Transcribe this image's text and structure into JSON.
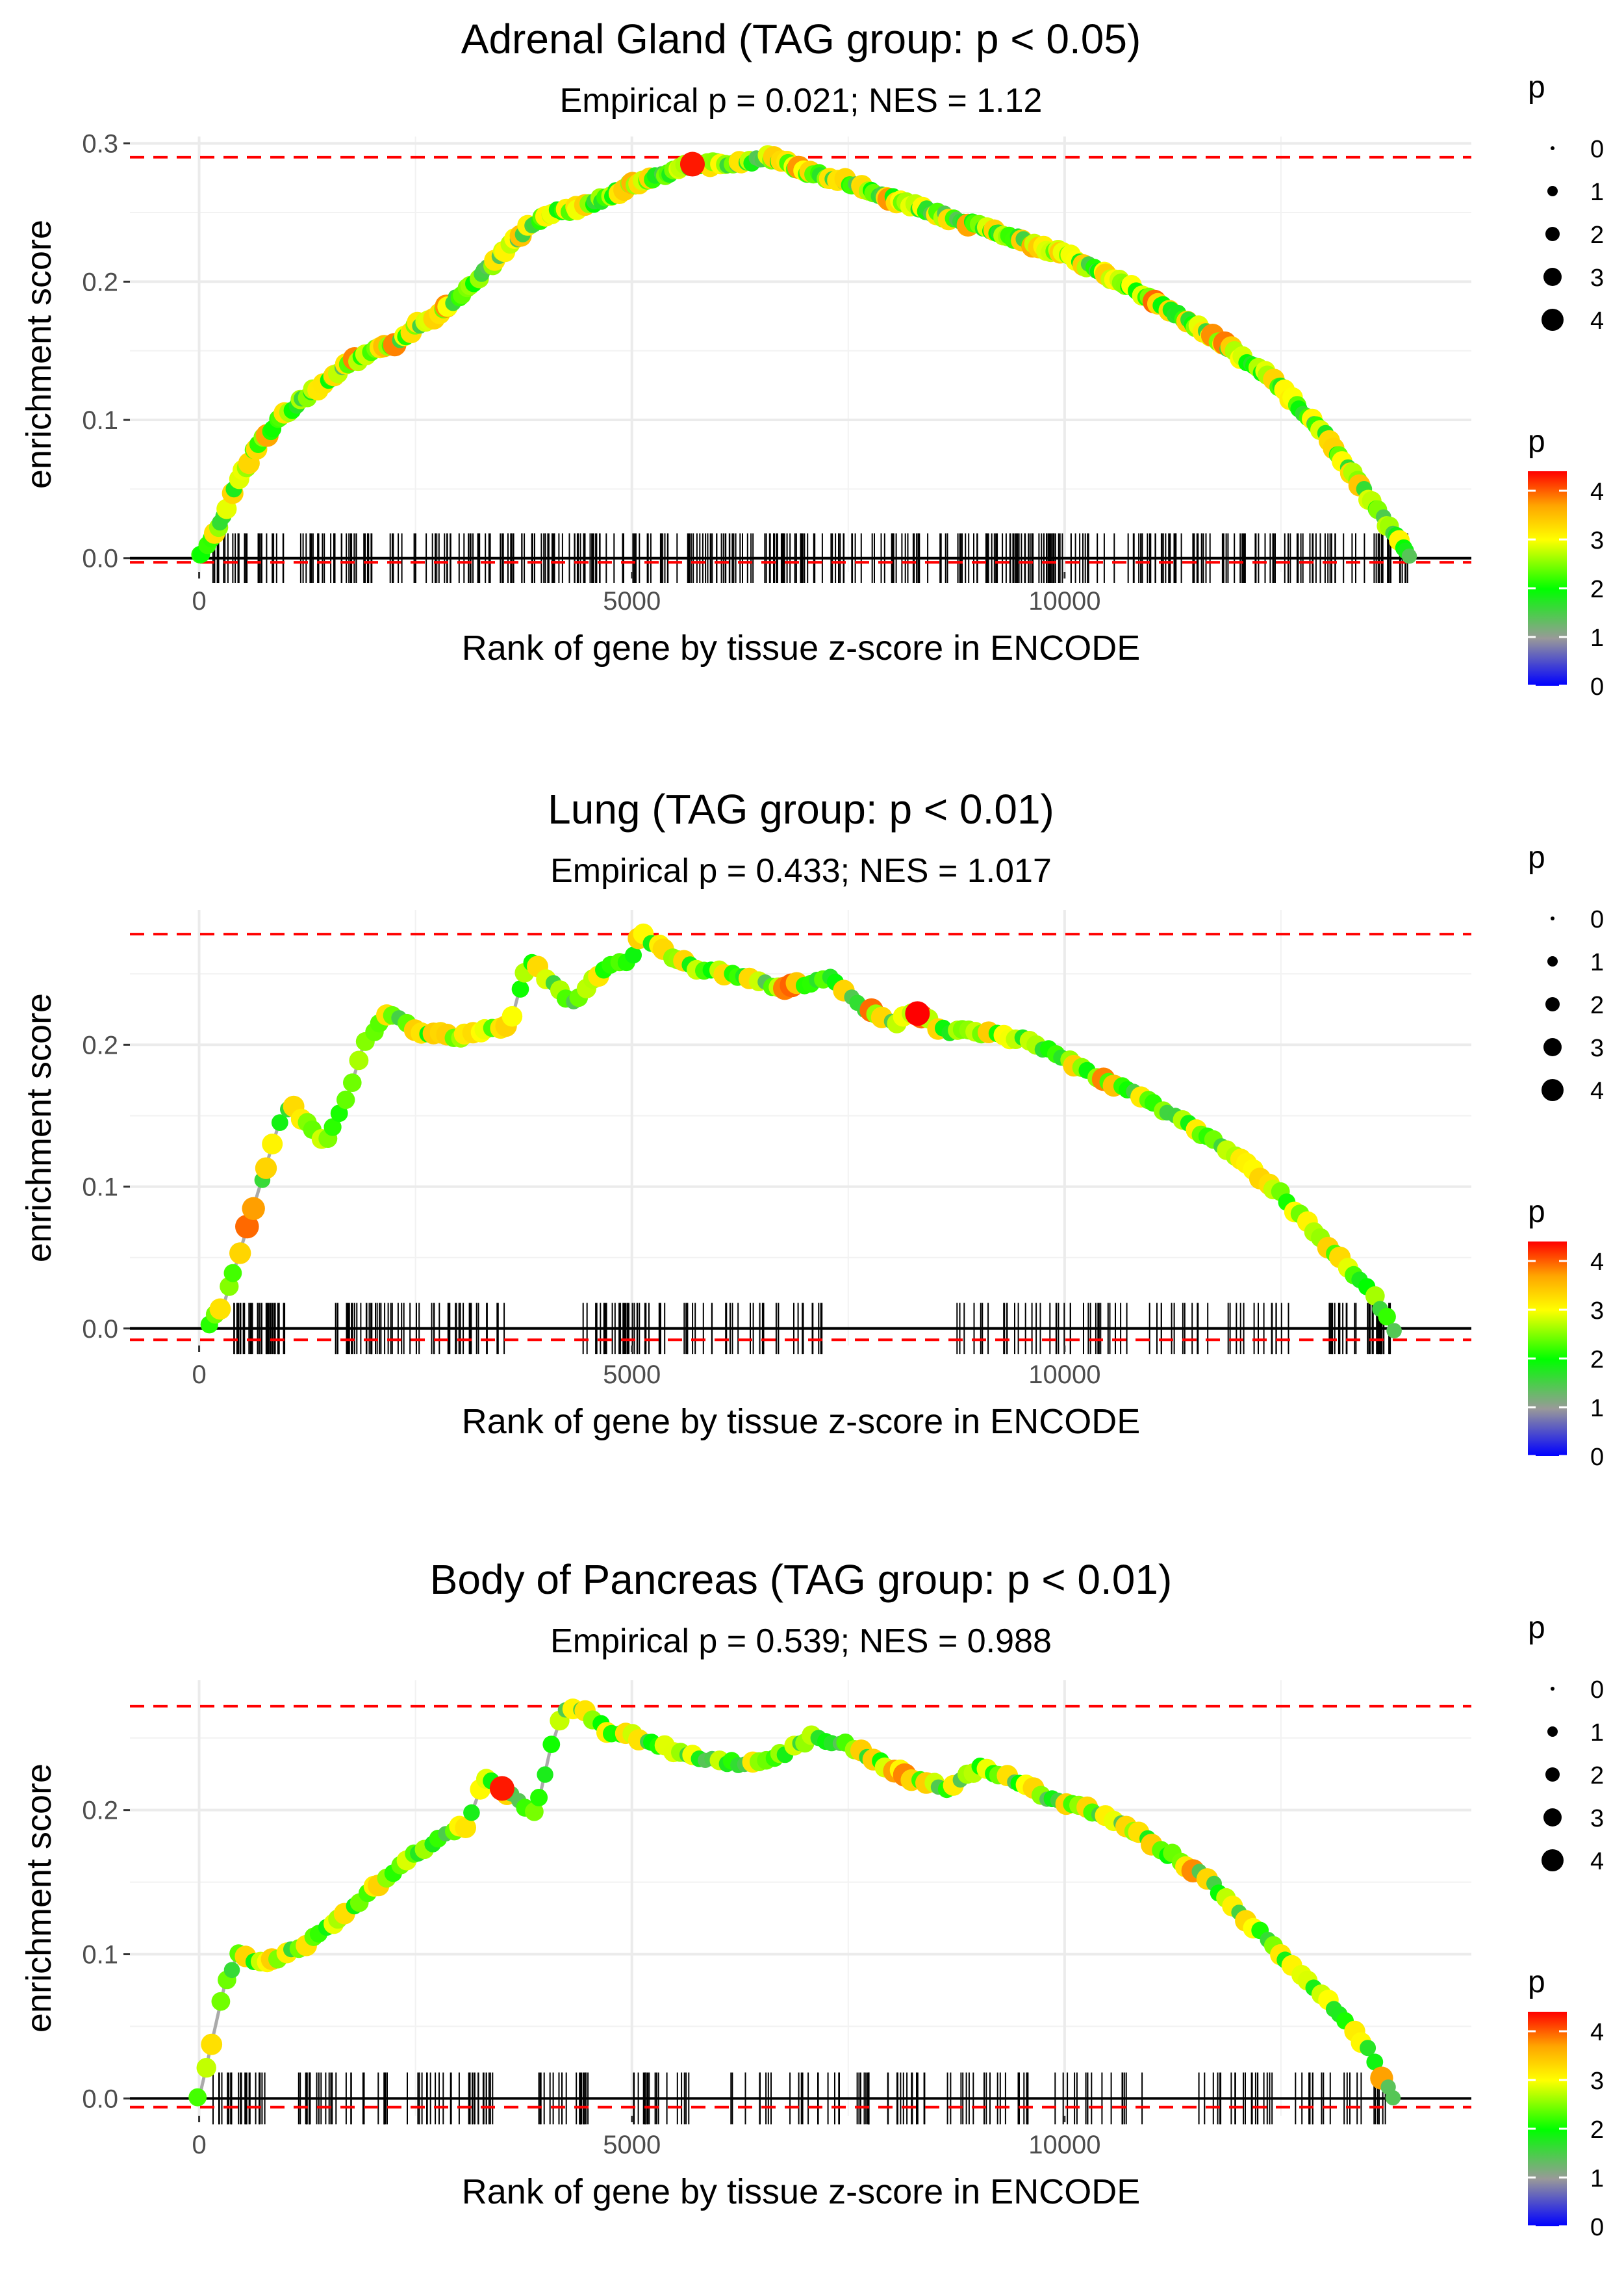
{
  "chart_data": [
    {
      "type": "line",
      "title": "Adrenal Gland (TAG group: p < 0.05)",
      "subtitle": "Empirical p = 0.021; NES = 1.12",
      "xlabel": "Rank of gene by tissue z-score in ENCODE",
      "ylabel": "enrichment score",
      "xlim": [
        -800,
        14700
      ],
      "ylim": [
        -0.01,
        0.305
      ],
      "x_ticks": [
        0,
        5000,
        10000
      ],
      "x_tick_labels": [
        "0",
        "5000",
        "10000"
      ],
      "y_ticks": [
        0.0,
        0.1,
        0.2,
        0.3
      ],
      "y_tick_labels": [
        "0.0",
        "0.1",
        "0.2",
        "0.3"
      ],
      "max_es": 0.29,
      "min_es": -0.003,
      "n_hits": 420,
      "curve": [
        [
          0,
          0
        ],
        [
          200,
          0.02
        ],
        [
          400,
          0.05
        ],
        [
          700,
          0.085
        ],
        [
          1000,
          0.105
        ],
        [
          1300,
          0.12
        ],
        [
          1600,
          0.135
        ],
        [
          2000,
          0.15
        ],
        [
          2300,
          0.155
        ],
        [
          2500,
          0.168
        ],
        [
          2800,
          0.178
        ],
        [
          3100,
          0.195
        ],
        [
          3500,
          0.22
        ],
        [
          3800,
          0.24
        ],
        [
          4100,
          0.25
        ],
        [
          4500,
          0.255
        ],
        [
          5000,
          0.27
        ],
        [
          5700,
          0.285
        ],
        [
          6200,
          0.285
        ],
        [
          6600,
          0.29
        ],
        [
          7000,
          0.28
        ],
        [
          7500,
          0.272
        ],
        [
          8000,
          0.26
        ],
        [
          9000,
          0.24
        ],
        [
          10000,
          0.22
        ],
        [
          10800,
          0.195
        ],
        [
          11600,
          0.165
        ],
        [
          12400,
          0.13
        ],
        [
          13000,
          0.09
        ],
        [
          13500,
          0.045
        ],
        [
          14000,
          0
        ]
      ],
      "highlight": {
        "x": 5700,
        "y": 0.285,
        "p": 4.3
      },
      "size_legend": {
        "title": "p",
        "values": [
          "0",
          "1",
          "2",
          "3",
          "4"
        ]
      },
      "color_legend": {
        "title": "p",
        "ticks": [
          "0",
          "1",
          "2",
          "3",
          "4"
        ],
        "max": 4.4
      }
    },
    {
      "type": "line",
      "title": "Lung (TAG group: p < 0.01)",
      "subtitle": "Empirical p = 0.433; NES = 1.017",
      "xlabel": "Rank of gene by tissue z-score in ENCODE",
      "ylabel": "enrichment score",
      "xlim": [
        -800,
        14700
      ],
      "ylim": [
        -0.012,
        0.295
      ],
      "x_ticks": [
        0,
        5000,
        10000
      ],
      "x_tick_labels": [
        "0",
        "5000",
        "10000"
      ],
      "y_ticks": [
        0.0,
        0.1,
        0.2
      ],
      "y_tick_labels": [
        "0.0",
        "0.1",
        "0.2"
      ],
      "max_es": 0.278,
      "min_es": -0.008,
      "n_hits": 260,
      "curve": [
        [
          100,
          0
        ],
        [
          300,
          0.02
        ],
        [
          500,
          0.06
        ],
        [
          700,
          0.1
        ],
        [
          900,
          0.14
        ],
        [
          1050,
          0.158
        ],
        [
          1450,
          0.13
        ],
        [
          1700,
          0.16
        ],
        [
          1900,
          0.2
        ],
        [
          2200,
          0.222
        ],
        [
          2500,
          0.21
        ],
        [
          3000,
          0.205
        ],
        [
          3300,
          0.21
        ],
        [
          3600,
          0.215
        ],
        [
          3800,
          0.262
        ],
        [
          4300,
          0.228
        ],
        [
          4700,
          0.255
        ],
        [
          5000,
          0.26
        ],
        [
          5100,
          0.278
        ],
        [
          5400,
          0.265
        ],
        [
          5700,
          0.255
        ],
        [
          6200,
          0.248
        ],
        [
          6800,
          0.24
        ],
        [
          7300,
          0.248
        ],
        [
          7700,
          0.225
        ],
        [
          8000,
          0.215
        ],
        [
          8300,
          0.222
        ],
        [
          8600,
          0.21
        ],
        [
          9000,
          0.208
        ],
        [
          9500,
          0.205
        ],
        [
          10000,
          0.19
        ],
        [
          10500,
          0.175
        ],
        [
          11000,
          0.16
        ],
        [
          11500,
          0.14
        ],
        [
          12000,
          0.12
        ],
        [
          12500,
          0.095
        ],
        [
          13000,
          0.06
        ],
        [
          13500,
          0.03
        ],
        [
          13800,
          0
        ]
      ],
      "highlight": {
        "x": 8300,
        "y": 0.222,
        "p": 4.4
      },
      "size_legend": {
        "title": "p",
        "values": [
          "0",
          "1",
          "2",
          "3",
          "4"
        ]
      },
      "color_legend": {
        "title": "p",
        "ticks": [
          "0",
          "1",
          "2",
          "3",
          "4"
        ],
        "max": 4.4
      }
    },
    {
      "type": "line",
      "title": "Body of Pancreas (TAG group: p < 0.01)",
      "subtitle": "Empirical p = 0.539; NES = 0.988",
      "xlabel": "Rank of gene by tissue z-score in ENCODE",
      "ylabel": "enrichment score",
      "xlim": [
        -800,
        14700
      ],
      "ylim": [
        -0.012,
        0.29
      ],
      "x_ticks": [
        0,
        5000,
        10000
      ],
      "x_tick_labels": [
        "0",
        "5000",
        "10000"
      ],
      "y_ticks": [
        0.0,
        0.1,
        0.2
      ],
      "y_tick_labels": [
        "0.0",
        "0.1",
        "0.2"
      ],
      "max_es": 0.272,
      "min_es": -0.006,
      "n_hits": 240,
      "curve": [
        [
          0,
          0
        ],
        [
          150,
          0.04
        ],
        [
          300,
          0.08
        ],
        [
          450,
          0.1
        ],
        [
          700,
          0.095
        ],
        [
          1000,
          0.1
        ],
        [
          1300,
          0.11
        ],
        [
          1600,
          0.125
        ],
        [
          1900,
          0.14
        ],
        [
          2200,
          0.155
        ],
        [
          2500,
          0.17
        ],
        [
          2800,
          0.18
        ],
        [
          3100,
          0.19
        ],
        [
          3300,
          0.223
        ],
        [
          3500,
          0.215
        ],
        [
          3700,
          0.205
        ],
        [
          3900,
          0.2
        ],
        [
          4050,
          0.24
        ],
        [
          4200,
          0.268
        ],
        [
          4400,
          0.272
        ],
        [
          4700,
          0.255
        ],
        [
          5000,
          0.252
        ],
        [
          5400,
          0.243
        ],
        [
          5800,
          0.235
        ],
        [
          6300,
          0.232
        ],
        [
          6800,
          0.24
        ],
        [
          7100,
          0.252
        ],
        [
          7500,
          0.245
        ],
        [
          7900,
          0.232
        ],
        [
          8300,
          0.22
        ],
        [
          8700,
          0.215
        ],
        [
          9000,
          0.23
        ],
        [
          9400,
          0.222
        ],
        [
          9800,
          0.208
        ],
        [
          10300,
          0.2
        ],
        [
          10800,
          0.185
        ],
        [
          11200,
          0.17
        ],
        [
          11600,
          0.155
        ],
        [
          12000,
          0.13
        ],
        [
          12500,
          0.1
        ],
        [
          13000,
          0.07
        ],
        [
          13500,
          0.035
        ],
        [
          13800,
          0
        ]
      ],
      "highlight": {
        "x": 3500,
        "y": 0.215,
        "p": 4.3
      },
      "size_legend": {
        "title": "p",
        "values": [
          "0",
          "1",
          "2",
          "3",
          "4"
        ]
      },
      "color_legend": {
        "title": "p",
        "ticks": [
          "0",
          "1",
          "2",
          "3",
          "4"
        ],
        "max": 4.4
      }
    }
  ]
}
